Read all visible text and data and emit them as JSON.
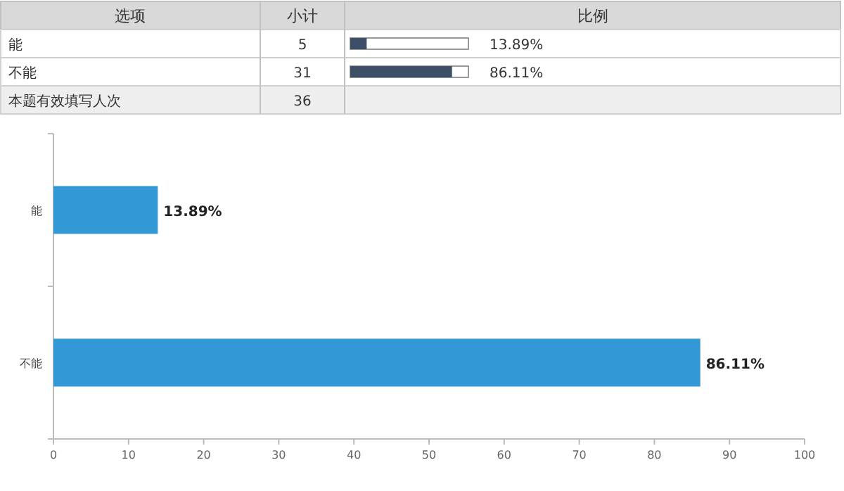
{
  "chart_data": [
    {
      "type": "other",
      "categories": [
        "能",
        "不能",
        "本题有效填写人次"
      ],
      "values": [
        5,
        31,
        36
      ],
      "value_labels": [
        "5",
        "31",
        "36"
      ],
      "annotations": [
        "选项",
        "小计",
        "比例",
        "13.89%",
        "86.11%"
      ]
    },
    {
      "type": "bar",
      "orientation": "horizontal",
      "categories": [
        "能",
        "不能"
      ],
      "values": [
        13.89,
        86.11
      ],
      "value_labels": [
        "13.89%",
        "86.11%"
      ],
      "color": "#3399d6",
      "xlim": [
        0,
        100
      ],
      "xticks": [
        0,
        10,
        20,
        30,
        40,
        50,
        60,
        70,
        80,
        90,
        100
      ]
    }
  ]
}
